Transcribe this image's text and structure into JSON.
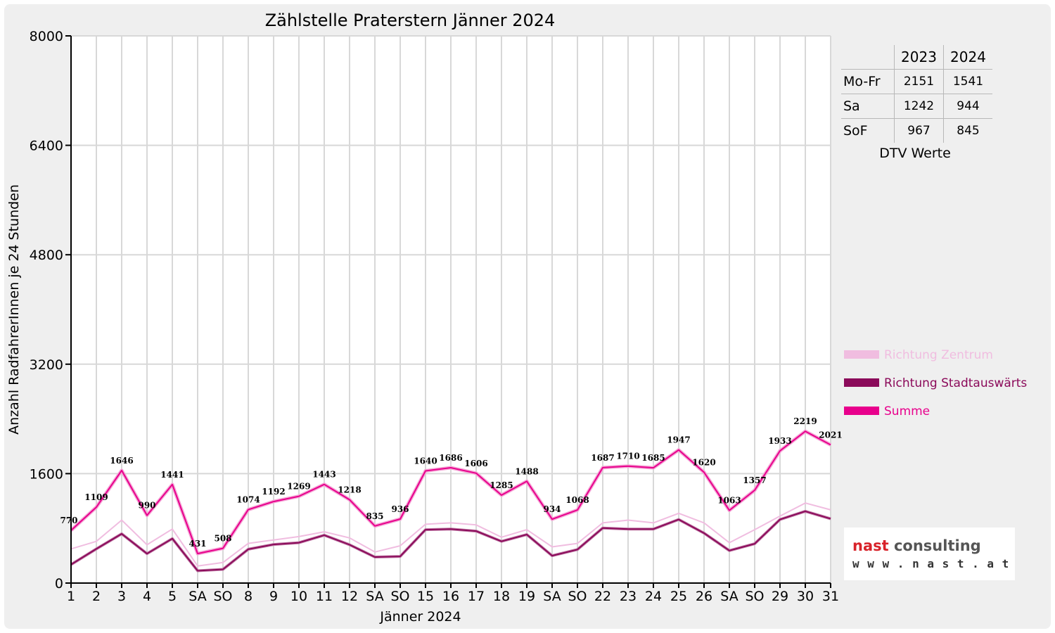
{
  "chart_data": {
    "type": "line",
    "title": "Zählstelle Praterstern Jänner 2024",
    "xlabel": "Jänner 2024",
    "ylabel": "Anzahl RadfahrerInnen je 24 Stunden",
    "ylim": [
      0,
      8000
    ],
    "yticks": [
      0,
      1600,
      3200,
      4800,
      6400,
      8000
    ],
    "categories": [
      "1",
      "2",
      "3",
      "4",
      "5",
      "SA",
      "SO",
      "8",
      "9",
      "10",
      "11",
      "12",
      "SA",
      "SO",
      "15",
      "16",
      "17",
      "18",
      "19",
      "SA",
      "SO",
      "22",
      "23",
      "24",
      "25",
      "26",
      "SA",
      "SO",
      "29",
      "30",
      "31"
    ],
    "highlight_categories": [
      0,
      6,
      13,
      20,
      27
    ],
    "highlight_color": "#ff0000",
    "grid": true,
    "legend_position": "right",
    "series": [
      {
        "name": "Richtung Zentrum",
        "color": "#f0bde0",
        "values": [
          500,
          610,
          920,
          560,
          790,
          250,
          300,
          580,
          630,
          680,
          750,
          660,
          455,
          545,
          860,
          880,
          850,
          670,
          780,
          530,
          580,
          880,
          920,
          880,
          1020,
          880,
          590,
          780,
          980,
          1170,
          1070
        ]
      },
      {
        "name": "Richtung Stadtauswärts",
        "color": "#8b0a5a",
        "values": [
          270,
          500,
          720,
          430,
          650,
          180,
          200,
          495,
          565,
          590,
          700,
          560,
          380,
          390,
          780,
          790,
          760,
          610,
          710,
          400,
          490,
          805,
          790,
          790,
          930,
          730,
          475,
          575,
          930,
          1050,
          940
        ]
      },
      {
        "name": "Summe",
        "color": "#e8008c",
        "values": [
          770,
          1109,
          1646,
          990,
          1441,
          431,
          508,
          1074,
          1192,
          1269,
          1443,
          1218,
          835,
          936,
          1640,
          1686,
          1606,
          1285,
          1488,
          934,
          1068,
          1687,
          1710,
          1685,
          1947,
          1620,
          1063,
          1357,
          1933,
          2219,
          2021
        ],
        "data_labels": [
          "770",
          "1109",
          "1646",
          "990",
          "1441",
          "431",
          "508",
          "1074",
          "1192",
          "1269",
          "1443",
          "1218",
          "835",
          "936",
          "1640",
          "1686",
          "1606",
          "1285",
          "1488",
          "934",
          "1068",
          "1687",
          "1710",
          "1685",
          "1947",
          "1620",
          "1063",
          "1357",
          "1933",
          "2219",
          "2021"
        ]
      }
    ]
  },
  "dtv_table": {
    "headers": [
      "",
      "2023",
      "2024"
    ],
    "rows": [
      {
        "label": "Mo-Fr",
        "v2023": "2151",
        "v2024": "1541"
      },
      {
        "label": "Sa",
        "v2023": "1242",
        "v2024": "944"
      },
      {
        "label": "SoF",
        "v2023": "967",
        "v2024": "845"
      }
    ],
    "caption": "DTV Werte"
  },
  "logo": {
    "word1": "nast",
    "word2": "consulting",
    "url": "w w w . n a s t . a t",
    "color_red": "#d8232a",
    "color_grey": "#555555"
  }
}
